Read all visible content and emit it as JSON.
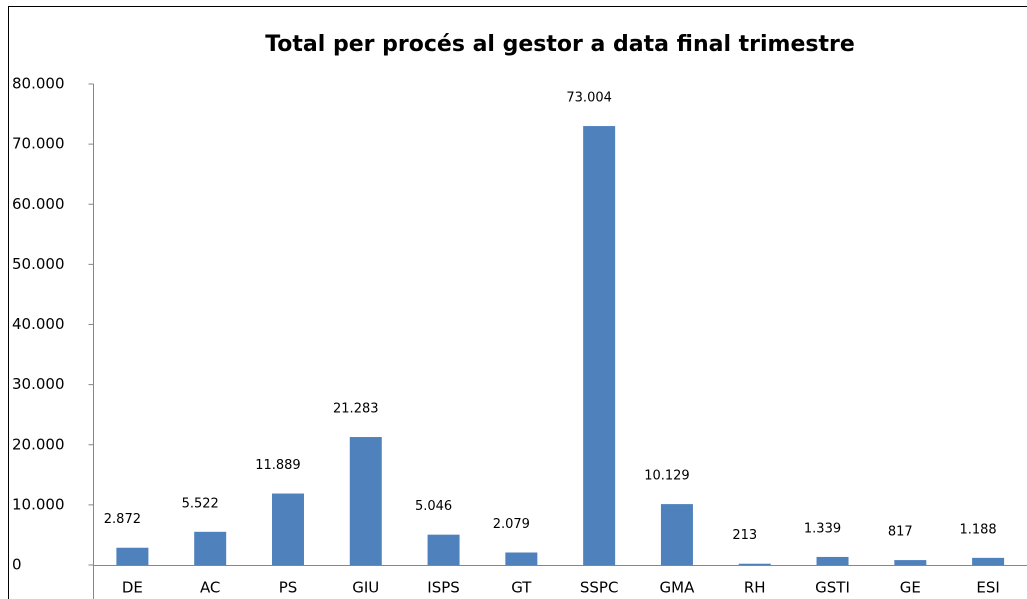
{
  "chart_data": {
    "type": "bar",
    "title": "Total per procés al gestor a data final trimestre",
    "categories": [
      "DE",
      "AC",
      "PS",
      "GIU",
      "ISPS",
      "GT",
      "SSPC",
      "GMA",
      "RH",
      "GSTI",
      "GE",
      "ESI"
    ],
    "values": [
      2872,
      5522,
      11889,
      21283,
      5046,
      2079,
      73004,
      10129,
      213,
      1339,
      817,
      1188
    ],
    "value_labels": [
      "2.872",
      "5.522",
      "11.889",
      "21.283",
      "5.046",
      "2.079",
      "73.004",
      "10.129",
      "213",
      "1.339",
      "817",
      "1.188"
    ],
    "color": "#4f81bd",
    "ylim": [
      0,
      80000
    ],
    "yticks": [
      0,
      {
        "value": 10000,
        "label": "10.000"
      },
      {
        "value": 20000,
        "label": "20.000"
      },
      {
        "value": 30000,
        "label": "30.000"
      },
      {
        "value": 40000,
        "label": "40.000"
      },
      {
        "value": 50000,
        "label": "50.000"
      },
      {
        "value": 60000,
        "label": "60.000"
      },
      {
        "value": 70000,
        "label": "70.000"
      },
      {
        "value": 80000,
        "label": "80.000"
      }
    ],
    "grid": false
  }
}
